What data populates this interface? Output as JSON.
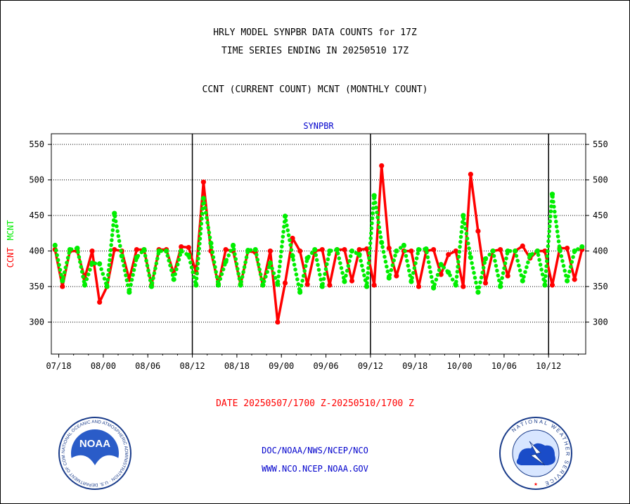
{
  "header": {
    "line1": "HRLY MODEL SYNPBR DATA COUNTS for 17Z",
    "line2": "TIME SERIES ENDING IN 20250510 17Z",
    "line3": "CCNT (CURRENT COUNT) MCNT (MONTHLY COUNT)"
  },
  "footer": {
    "date_range": "DATE 20250507/1700 Z-20250510/1700 Z",
    "org_path": "DOC/NOAA/NWS/NCEP/NCO",
    "website": "WWW.NCO.NCEP.NOAA.GOV"
  },
  "logos": {
    "noaa_text": "NOAA",
    "noaa_ring_text": "NATIONAL OCEANIC AND ATMOSPHERIC ADMINISTRATION · U.S. DEPARTMENT OF COMMERCE",
    "nws_ring_text": "NATIONAL WEATHER SERVICE"
  },
  "colors": {
    "ccnt": "#ff0000",
    "mcnt": "#00ee00",
    "title_blue": "#0000cc",
    "date_red": "#ff0000"
  },
  "chart_data": {
    "type": "line",
    "title": "SYNPBR",
    "ylabel_left": [
      "CCNT",
      "MCNT"
    ],
    "ylim": [
      255,
      565
    ],
    "yticks": [
      300,
      350,
      400,
      450,
      500,
      550
    ],
    "xlim": [
      -0.5,
      71.5
    ],
    "xtick_labels": [
      "07/18",
      "08/00",
      "08/06",
      "08/12",
      "08/18",
      "09/00",
      "09/06",
      "09/12",
      "09/18",
      "10/00",
      "10/06",
      "10/12"
    ],
    "xtick_positions": [
      0.5,
      6.5,
      12.5,
      18.5,
      24.5,
      30.5,
      36.5,
      42.5,
      48.5,
      54.5,
      60.5,
      66.5
    ],
    "day_boundaries": [
      18.5,
      42.5,
      66.5
    ],
    "grid": "horizontal dotted",
    "series": [
      {
        "name": "CCNT",
        "color": "#ff0000",
        "style": "solid",
        "values": [
          402,
          350,
          400,
          400,
          362,
          400,
          328,
          350,
          402,
          400,
          360,
          402,
          402,
          352,
          402,
          402,
          368,
          406,
          405,
          370,
          497,
          400,
          353,
          402,
          400,
          353,
          400,
          398,
          352,
          400,
          300,
          355,
          418,
          400,
          353,
          400,
          402,
          352,
          402,
          402,
          358,
          402,
          403,
          352,
          520,
          404,
          365,
          400,
          400,
          350,
          400,
          402,
          367,
          395,
          400,
          350,
          508,
          428,
          355,
          400,
          402,
          365,
          400,
          407,
          390,
          400,
          400,
          352,
          404,
          404,
          360,
          402
        ]
      },
      {
        "name": "MCNT",
        "color": "#00ee00",
        "style": "dotted",
        "values": [
          408,
          358,
          402,
          404,
          352,
          383,
          382,
          350,
          453,
          393,
          342,
          391,
          402,
          350,
          400,
          400,
          360,
          400,
          394,
          352,
          474,
          411,
          352,
          385,
          408,
          352,
          401,
          402,
          352,
          383,
          353,
          449,
          393,
          342,
          390,
          402,
          350,
          400,
          402,
          357,
          400,
          395,
          350,
          478,
          412,
          362,
          400,
          408,
          357,
          402,
          403,
          348,
          381,
          370,
          352,
          450,
          391,
          342,
          389,
          400,
          350,
          400,
          400,
          358,
          394,
          400,
          352,
          480,
          402,
          358,
          400,
          406
        ]
      }
    ]
  }
}
